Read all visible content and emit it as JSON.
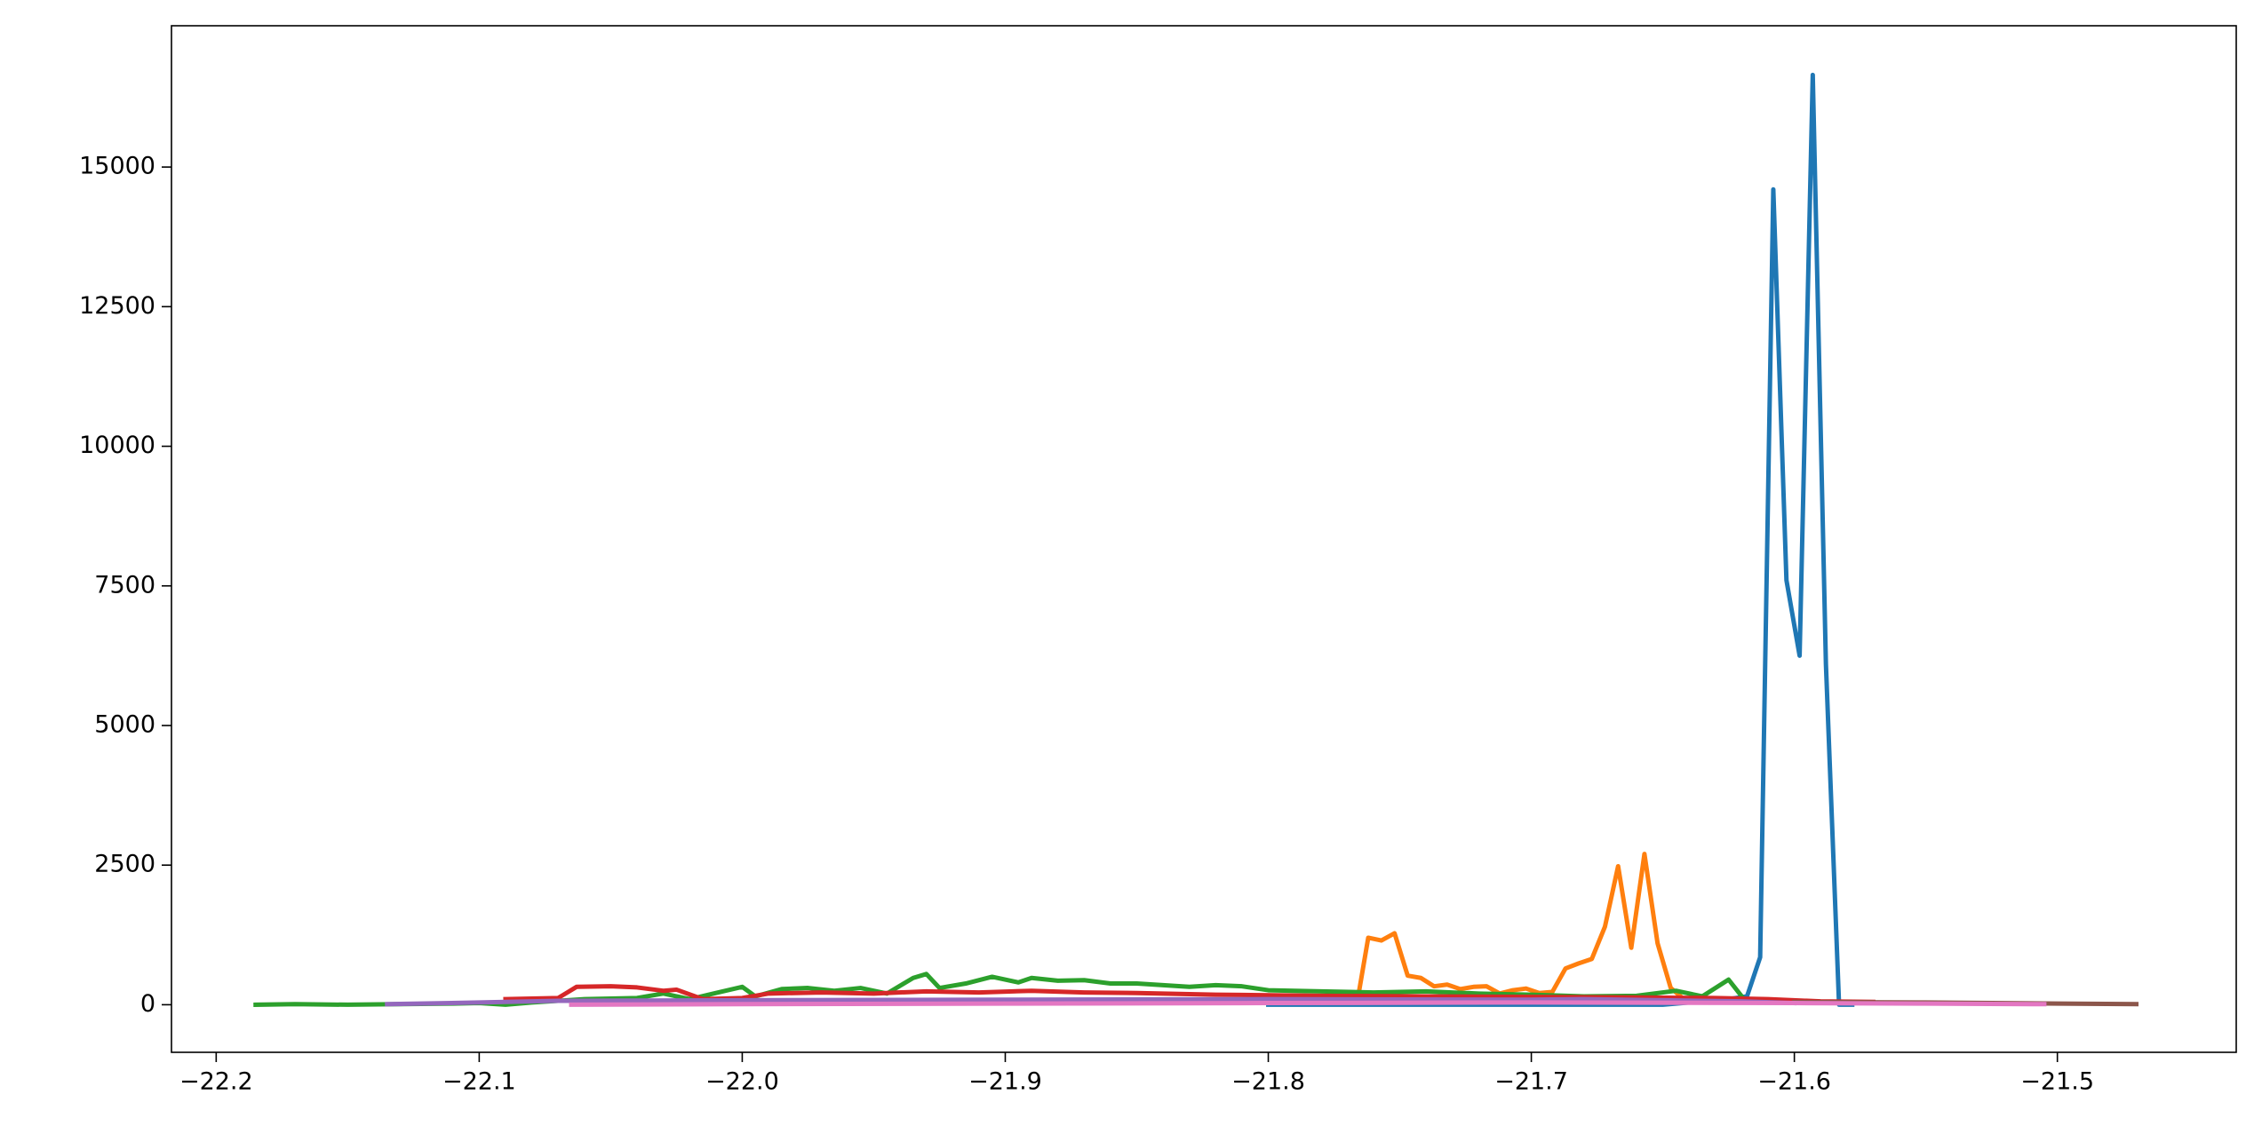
{
  "chart_data": {
    "type": "line",
    "xlim": [
      -22.217,
      -21.432
    ],
    "ylim": [
      -852,
      17530
    ],
    "xticks": [
      {
        "value": -22.2,
        "label": "−22.2"
      },
      {
        "value": -22.1,
        "label": "−22.1"
      },
      {
        "value": -22.0,
        "label": "−22.0"
      },
      {
        "value": -21.9,
        "label": "−21.9"
      },
      {
        "value": -21.8,
        "label": "−21.8"
      },
      {
        "value": -21.7,
        "label": "−21.7"
      },
      {
        "value": -21.6,
        "label": "−21.6"
      },
      {
        "value": -21.5,
        "label": "−21.5"
      }
    ],
    "yticks": [
      0,
      2500,
      5000,
      7500,
      10000,
      12500,
      15000
    ],
    "series": [
      {
        "color": "#1f77b4",
        "x": [
          -21.8,
          -21.75,
          -21.7,
          -21.65,
          -21.625,
          -21.618,
          -21.613,
          -21.608,
          -21.603,
          -21.598,
          -21.593,
          -21.588,
          -21.583,
          -21.578
        ],
        "values": [
          0,
          0,
          0,
          0,
          100,
          150,
          850,
          14600,
          7600,
          6250,
          16650,
          6100,
          0,
          0
        ]
      },
      {
        "color": "#ff7f0e",
        "x": [
          -21.766,
          -21.762,
          -21.757,
          -21.752,
          -21.747,
          -21.742,
          -21.737,
          -21.732,
          -21.727,
          -21.722,
          -21.717,
          -21.712,
          -21.707,
          -21.702,
          -21.697,
          -21.692,
          -21.687,
          -21.682,
          -21.677,
          -21.672,
          -21.667,
          -21.662,
          -21.657,
          -21.652,
          -21.647,
          -21.642,
          -21.637,
          -21.632
        ],
        "values": [
          100,
          1200,
          1150,
          1280,
          520,
          480,
          330,
          360,
          280,
          320,
          330,
          200,
          260,
          290,
          210,
          230,
          650,
          740,
          820,
          1400,
          2480,
          1020,
          2700,
          1100,
          300,
          100,
          50,
          80
        ]
      },
      {
        "color": "#2ca02c",
        "x": [
          -22.185,
          -22.17,
          -22.15,
          -22.13,
          -22.11,
          -22.1,
          -22.09,
          -22.08,
          -22.06,
          -22.04,
          -22.03,
          -22.02,
          -22.01,
          -22.0,
          -21.995,
          -21.985,
          -21.975,
          -21.965,
          -21.955,
          -21.945,
          -21.935,
          -21.93,
          -21.925,
          -21.915,
          -21.905,
          -21.895,
          -21.89,
          -21.88,
          -21.87,
          -21.86,
          -21.85,
          -21.84,
          -21.83,
          -21.82,
          -21.81,
          -21.8,
          -21.78,
          -21.76,
          -21.74,
          -21.72,
          -21.7,
          -21.68,
          -21.66,
          -21.645,
          -21.635,
          -21.625,
          -21.62
        ],
        "values": [
          0,
          10,
          0,
          10,
          20,
          30,
          0,
          40,
          100,
          120,
          200,
          100,
          210,
          320,
          150,
          280,
          300,
          250,
          300,
          200,
          480,
          550,
          300,
          380,
          500,
          400,
          480,
          430,
          440,
          380,
          380,
          350,
          320,
          350,
          330,
          260,
          240,
          220,
          240,
          200,
          180,
          150,
          160,
          250,
          150,
          450,
          150
        ]
      },
      {
        "color": "#d62728",
        "x": [
          -22.09,
          -22.07,
          -22.063,
          -22.05,
          -22.04,
          -22.03,
          -22.025,
          -22.015,
          -22.0,
          -21.99,
          -21.97,
          -21.95,
          -21.93,
          -21.91,
          -21.89,
          -21.87,
          -21.85,
          -21.82,
          -21.78,
          -21.74,
          -21.7,
          -21.66,
          -21.63,
          -21.61,
          -21.59,
          -21.57
        ],
        "values": [
          100,
          120,
          320,
          330,
          310,
          250,
          270,
          100,
          120,
          200,
          220,
          200,
          240,
          220,
          250,
          220,
          210,
          180,
          160,
          150,
          140,
          130,
          120,
          100,
          60,
          50
        ]
      },
      {
        "color": "#9467bd",
        "x": [
          -22.135,
          -22.1,
          -22.07,
          -22.0,
          -21.9,
          -21.8,
          -21.7,
          -21.68,
          -21.65,
          -21.62,
          -21.6
        ],
        "values": [
          10,
          40,
          70,
          80,
          90,
          100,
          90,
          100,
          80,
          60,
          30
        ]
      },
      {
        "color": "#8c564b",
        "x": [
          -21.6,
          -21.55,
          -21.5,
          -21.47
        ],
        "values": [
          50,
          40,
          20,
          10
        ]
      },
      {
        "color": "#e377c2",
        "x": [
          -22.065,
          -22.0,
          -21.9,
          -21.8,
          -21.7,
          -21.6,
          -21.55,
          -21.505
        ],
        "values": [
          0,
          10,
          20,
          30,
          40,
          30,
          20,
          10
        ]
      }
    ]
  }
}
